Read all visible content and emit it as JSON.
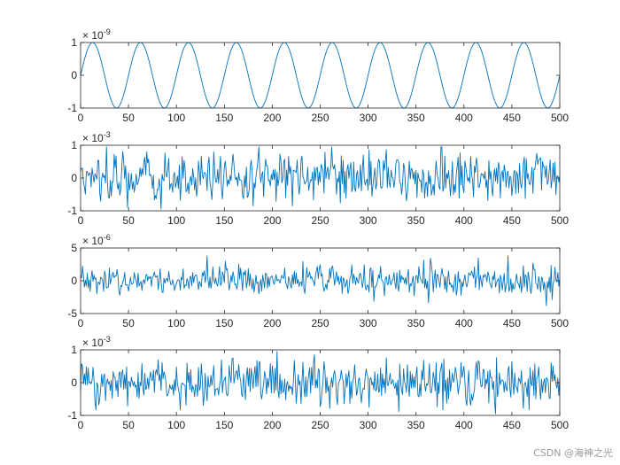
{
  "chart_data": [
    {
      "type": "line",
      "series_color": "#0072bd",
      "xlim": [
        0,
        500
      ],
      "ylim": [
        -1,
        1
      ],
      "xticks": [
        "0",
        "50",
        "100",
        "150",
        "200",
        "250",
        "300",
        "350",
        "400",
        "450",
        "500"
      ],
      "yticks": [
        "1",
        "0",
        "-1"
      ],
      "exponent_base": "× 10",
      "exponent_power": "-9",
      "signal": {
        "kind": "sinusoid",
        "amplitude": 1,
        "period": 50,
        "phase_start": 0
      }
    },
    {
      "type": "line",
      "series_color": "#0072bd",
      "xlim": [
        0,
        500
      ],
      "ylim": [
        -1,
        1
      ],
      "xticks": [
        "0",
        "50",
        "100",
        "150",
        "200",
        "250",
        "300",
        "350",
        "400",
        "450",
        "500"
      ],
      "yticks": [
        "1",
        "0",
        "-1"
      ],
      "exponent_base": "× 10",
      "exponent_power": "-3",
      "signal": {
        "kind": "noise",
        "amplitude": 0.35,
        "max_abs": 0.95
      }
    },
    {
      "type": "line",
      "series_color": "#0072bd",
      "xlim": [
        0,
        500
      ],
      "ylim": [
        -5,
        5
      ],
      "xticks": [
        "0",
        "50",
        "100",
        "150",
        "200",
        "250",
        "300",
        "350",
        "400",
        "450",
        "500"
      ],
      "yticks": [
        "5",
        "0",
        "-5"
      ],
      "exponent_base": "× 10",
      "exponent_power": "-6",
      "signal": {
        "kind": "noise",
        "amplitude": 1.1,
        "max_abs": 3.8
      }
    },
    {
      "type": "line",
      "series_color": "#0072bd",
      "xlim": [
        0,
        500
      ],
      "ylim": [
        -1,
        1
      ],
      "xticks": [
        "0",
        "50",
        "100",
        "150",
        "200",
        "250",
        "300",
        "350",
        "400",
        "450",
        "500"
      ],
      "yticks": [
        "1",
        "0",
        "-1"
      ],
      "exponent_base": "× 10",
      "exponent_power": "-3",
      "signal": {
        "kind": "noise",
        "amplitude": 0.35,
        "max_abs": 0.95
      }
    }
  ],
  "watermark": "CSDN @海神之光"
}
